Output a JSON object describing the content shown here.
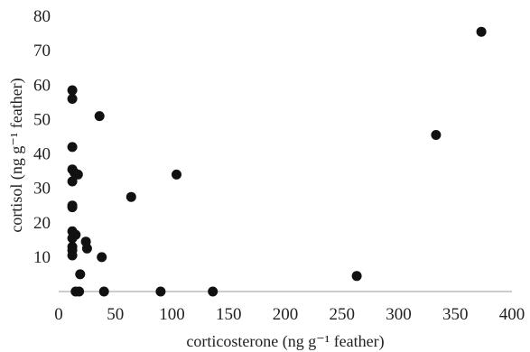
{
  "chart_data": {
    "type": "scatter",
    "title": "",
    "xlabel": "corticosterone (ng g⁻¹ feather)",
    "ylabel": "cortisol (ng g⁻¹ feather)",
    "xlim": [
      0,
      400
    ],
    "ylim": [
      0,
      80
    ],
    "xticks": [
      0,
      50,
      100,
      150,
      200,
      250,
      300,
      350,
      400
    ],
    "yticks": [
      10,
      20,
      30,
      40,
      50,
      60,
      70,
      80
    ],
    "grid": false,
    "legend": "none",
    "marker_color": "#111111",
    "series": [
      {
        "points": [
          [
            12,
            58.5
          ],
          [
            12,
            56
          ],
          [
            12,
            42
          ],
          [
            12,
            35.5
          ],
          [
            14,
            34.5
          ],
          [
            17,
            34
          ],
          [
            12,
            32
          ],
          [
            12,
            25
          ],
          [
            12,
            24.5
          ],
          [
            12,
            17.5
          ],
          [
            12,
            15.5
          ],
          [
            15,
            16.5
          ],
          [
            12,
            13
          ],
          [
            12,
            12
          ],
          [
            12,
            10.5
          ],
          [
            15,
            0
          ],
          [
            18,
            0
          ],
          [
            19,
            5
          ],
          [
            24,
            14.5
          ],
          [
            25,
            12.5
          ],
          [
            36,
            51
          ],
          [
            38,
            10
          ],
          [
            40,
            0
          ],
          [
            64,
            27.5
          ],
          [
            90,
            0
          ],
          [
            104,
            34
          ],
          [
            136,
            0
          ],
          [
            263,
            4.5
          ],
          [
            333,
            45.5
          ],
          [
            373,
            75.5
          ]
        ]
      }
    ]
  }
}
